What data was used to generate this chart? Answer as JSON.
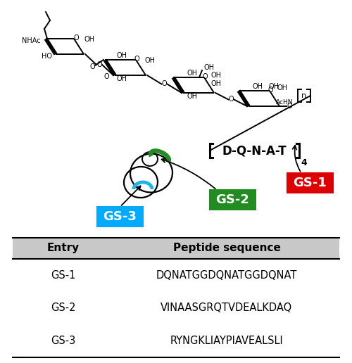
{
  "table_header": [
    "Entry",
    "Peptide sequence"
  ],
  "table_rows": [
    [
      "GS-1",
      "DQNATGGDQNATGGDQNAT"
    ],
    [
      "GS-2",
      "VINAASGRQTVDEALKDAQ"
    ],
    [
      "GS-3",
      "RYNGKLIAYPIAVEALSLI"
    ]
  ],
  "gs1_label": "GS-1",
  "gs2_label": "GS-2",
  "gs3_label": "GS-3",
  "gs1_color": "#dd0000",
  "gs2_color": "#228B22",
  "gs3_color": "#00aaff",
  "label_text_color": "#ffffff",
  "background_color": "#ffffff",
  "table_bg_color": "#e0e0e0",
  "header_row_color": "#c8c8c8"
}
